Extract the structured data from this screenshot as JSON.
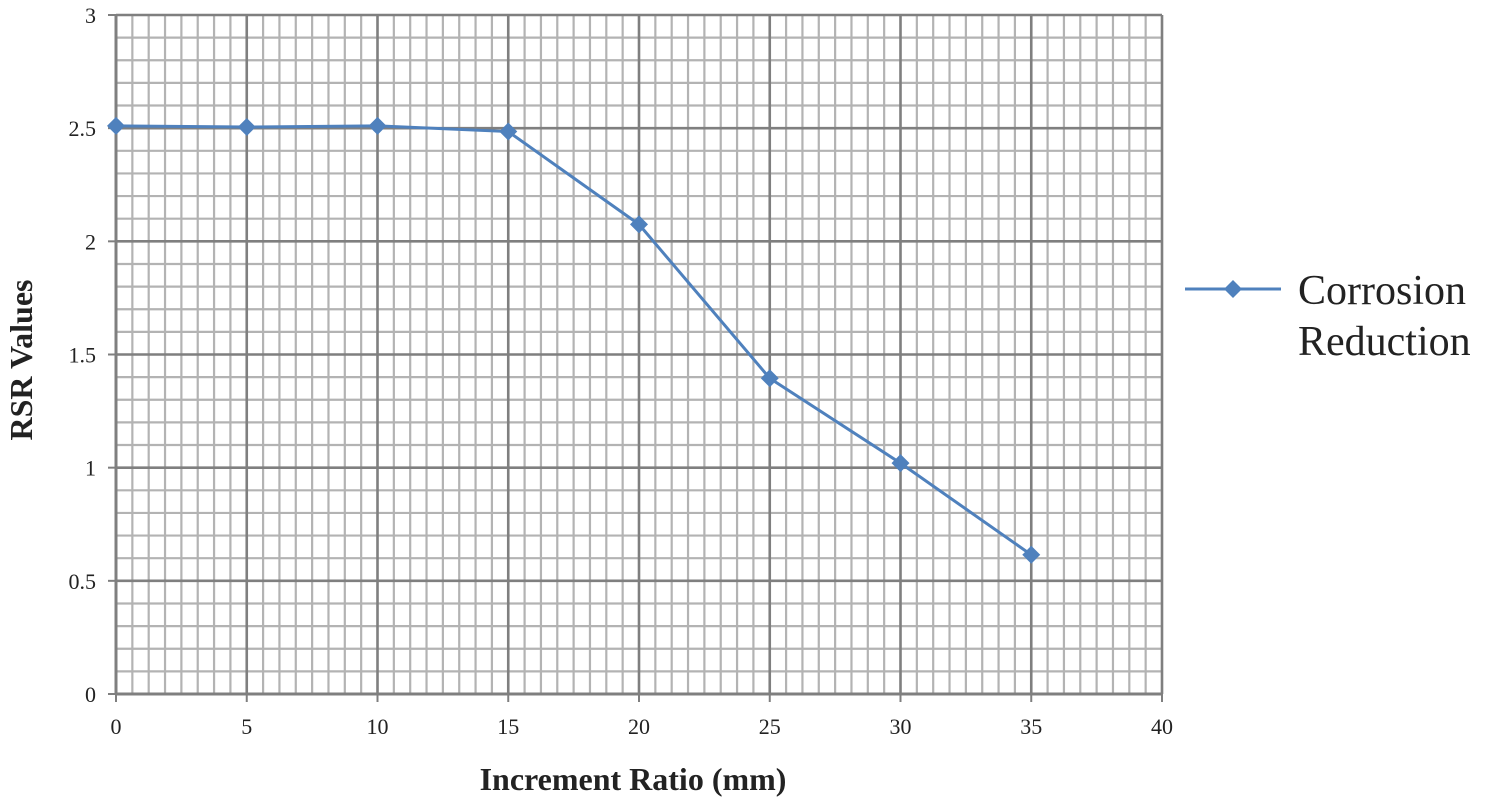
{
  "chart_data": {
    "type": "line",
    "title": "",
    "xlabel": "Increment Ratio (mm)",
    "ylabel": "RSR Values",
    "xlim": [
      0,
      40
    ],
    "ylim": [
      0,
      3
    ],
    "x_ticks": [
      "0",
      "5",
      "10",
      "15",
      "20",
      "25",
      "30",
      "35",
      "40"
    ],
    "y_ticks": [
      "0",
      "0.5",
      "1",
      "1.5",
      "2",
      "2.5",
      "3"
    ],
    "x_tick_values": [
      0,
      5,
      10,
      15,
      20,
      25,
      30,
      35,
      40
    ],
    "y_tick_values": [
      0,
      0.5,
      1,
      1.5,
      2,
      2.5,
      3
    ],
    "grid": true,
    "legend_position": "right",
    "series": [
      {
        "name_lines": [
          "Corrosion",
          "Reduction"
        ],
        "color": "#4f81bd",
        "marker": "diamond",
        "x": [
          0,
          5,
          10,
          15,
          20,
          25,
          30,
          35
        ],
        "y": [
          2.51,
          2.505,
          2.51,
          2.485,
          2.075,
          1.395,
          1.02,
          0.615
        ]
      }
    ]
  }
}
